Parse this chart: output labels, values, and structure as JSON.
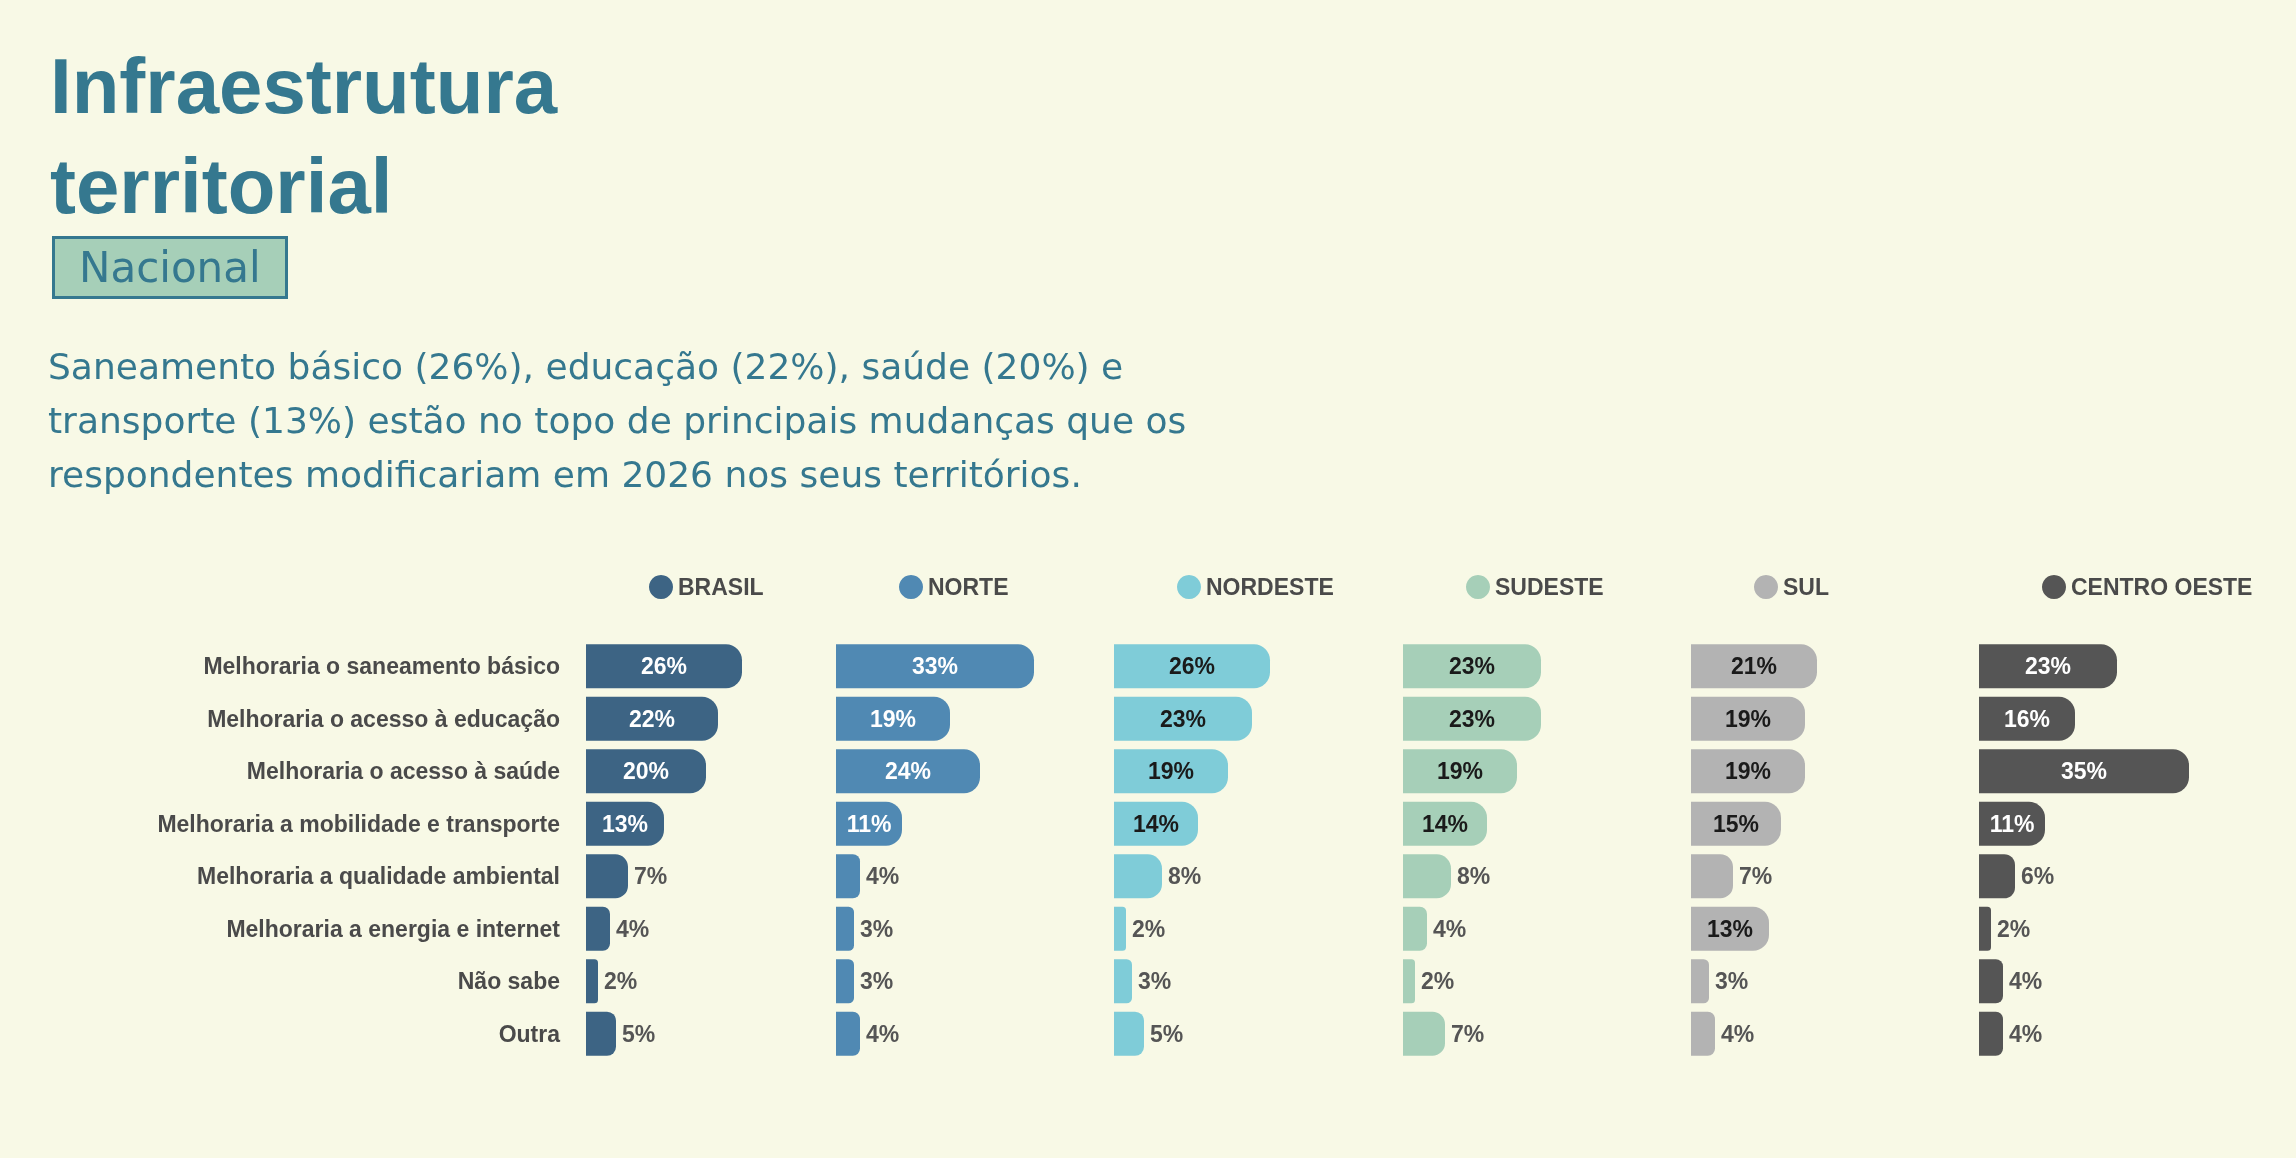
{
  "chart_data": [
    {
      "type": "bar",
      "orientation": "horizontal",
      "title": "Infraestrutura territorial",
      "subtitle": "Nacional",
      "annotations": [
        "Saneamento básico (26%), educação (22%), saúde (20%) e transporte (13%) estão no topo de principais mudanças que os respondentes modificariam em 2026 nos seus territórios."
      ],
      "categories": [
        "Melhoraria o saneamento básico",
        "Melhoraria o acesso à educação",
        "Melhoraria o acesso à saúde",
        "Melhoraria a mobilidade e transporte",
        "Melhoraria a qualidade ambiental",
        "Melhoraria a energia e internet",
        "Não sabe",
        "Outra"
      ],
      "series": [
        {
          "name": "BRASIL",
          "color": "#3d6484",
          "values": [
            26,
            22,
            20,
            13,
            7,
            4,
            2,
            5
          ],
          "value_labels": [
            "26%",
            "22%",
            "20%",
            "13%",
            "7%",
            "4%",
            "2%",
            "5%"
          ]
        }
      ],
      "legend": "top",
      "tick_labels": "y"
    },
    {
      "type": "bar",
      "orientation": "horizontal",
      "categories": [
        null,
        null,
        null,
        null,
        null,
        null,
        null,
        null
      ],
      "series": [
        {
          "name": "NORTE",
          "color": "#5089b3",
          "values": [
            33,
            19,
            24,
            11,
            4,
            3,
            3,
            4
          ],
          "value_labels": [
            "33%",
            "19%",
            "24%",
            "11%",
            "4%",
            "3%",
            "3%",
            "4%"
          ]
        }
      ],
      "legend": "top",
      "tick_labels": false
    },
    {
      "type": "bar",
      "orientation": "horizontal",
      "categories": [
        null,
        null,
        null,
        null,
        null,
        null,
        null,
        null
      ],
      "series": [
        {
          "name": "NORDESTE",
          "color": "#7fccd8",
          "values": [
            26,
            23,
            19,
            14,
            8,
            2,
            3,
            5
          ],
          "value_labels": [
            "26%",
            "23%",
            "19%",
            "14%",
            "8%",
            "2%",
            "3%",
            "5%"
          ]
        }
      ],
      "legend": "top",
      "tick_labels": false
    },
    {
      "type": "bar",
      "orientation": "horizontal",
      "categories": [
        null,
        null,
        null,
        null,
        null,
        null,
        null,
        null
      ],
      "series": [
        {
          "name": "SUDESTE",
          "color": "#a6cfb8",
          "values": [
            23,
            23,
            19,
            14,
            8,
            4,
            2,
            7
          ],
          "value_labels": [
            "23%",
            "23%",
            "19%",
            "14%",
            "8%",
            "4%",
            "2%",
            "7%"
          ]
        }
      ],
      "legend": "top",
      "tick_labels": false
    },
    {
      "type": "bar",
      "orientation": "horizontal",
      "categories": [
        null,
        null,
        null,
        null,
        null,
        null,
        null,
        null
      ],
      "series": [
        {
          "name": "SUL",
          "color": "#b3b3b3",
          "values": [
            21,
            19,
            19,
            15,
            7,
            13,
            3,
            4
          ],
          "value_labels": [
            "21%",
            "19%",
            "19%",
            "15%",
            "7%",
            "13%",
            "3%",
            "4%"
          ]
        }
      ],
      "legend": "top",
      "tick_labels": false
    },
    {
      "type": "bar",
      "orientation": "horizontal",
      "categories": [
        null,
        null,
        null,
        null,
        null,
        null,
        null,
        null
      ],
      "series": [
        {
          "name": "CENTRO OESTE",
          "color": "#555555",
          "values": [
            23,
            16,
            35,
            11,
            6,
            2,
            4,
            4
          ],
          "value_labels": [
            "23%",
            "16%",
            "35%",
            "11%",
            "6%",
            "2%",
            "4%",
            "4%"
          ]
        }
      ],
      "legend": "top",
      "tick_labels": false
    }
  ]
}
